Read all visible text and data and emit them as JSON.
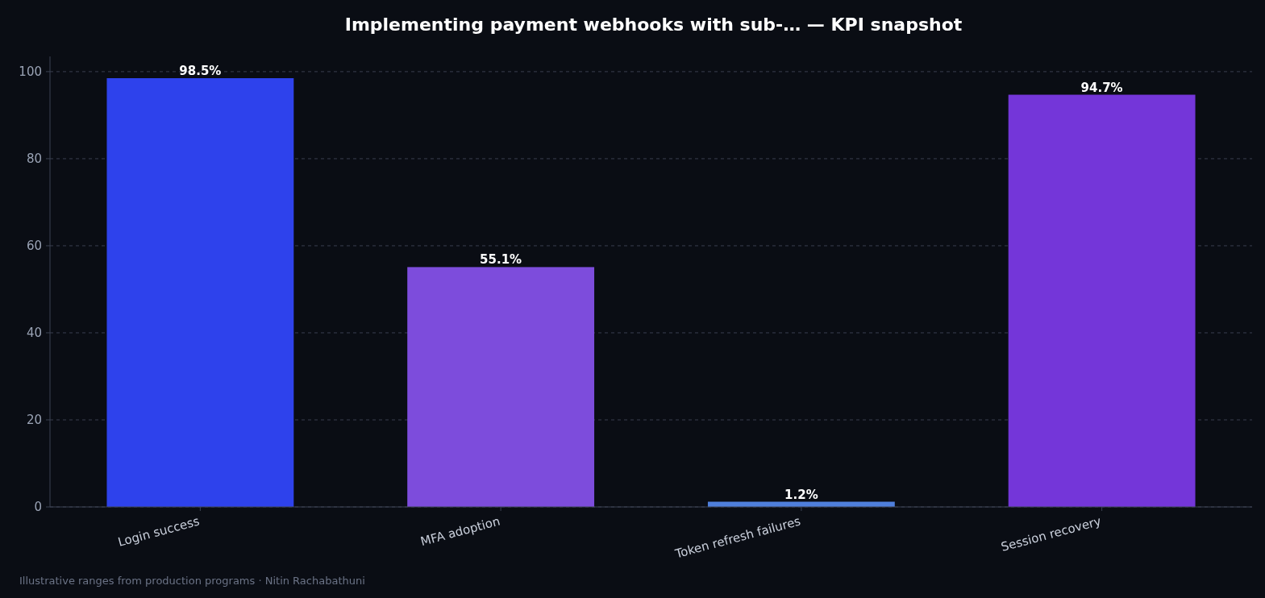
{
  "chart_data": {
    "type": "bar",
    "title": "Implementing payment webhooks with sub-… — KPI snapshot",
    "categories": [
      "Login success",
      "MFA adoption",
      "Token refresh failures",
      "Session recovery"
    ],
    "values": [
      98.5,
      55.1,
      1.2,
      94.7
    ],
    "colors": [
      "#2e42ec",
      "#7d4cdc",
      "#4f7fdc",
      "#7436d9"
    ],
    "value_labels": [
      "98.5%",
      "55.1%",
      "1.2%",
      "94.7%"
    ],
    "ylim": [
      0,
      103.5
    ],
    "yticks": [
      0,
      20,
      40,
      60,
      80,
      100
    ],
    "grid": "y",
    "annotations": [
      "Illustrative ranges from production programs · Nitin Rachabathuni"
    ]
  }
}
